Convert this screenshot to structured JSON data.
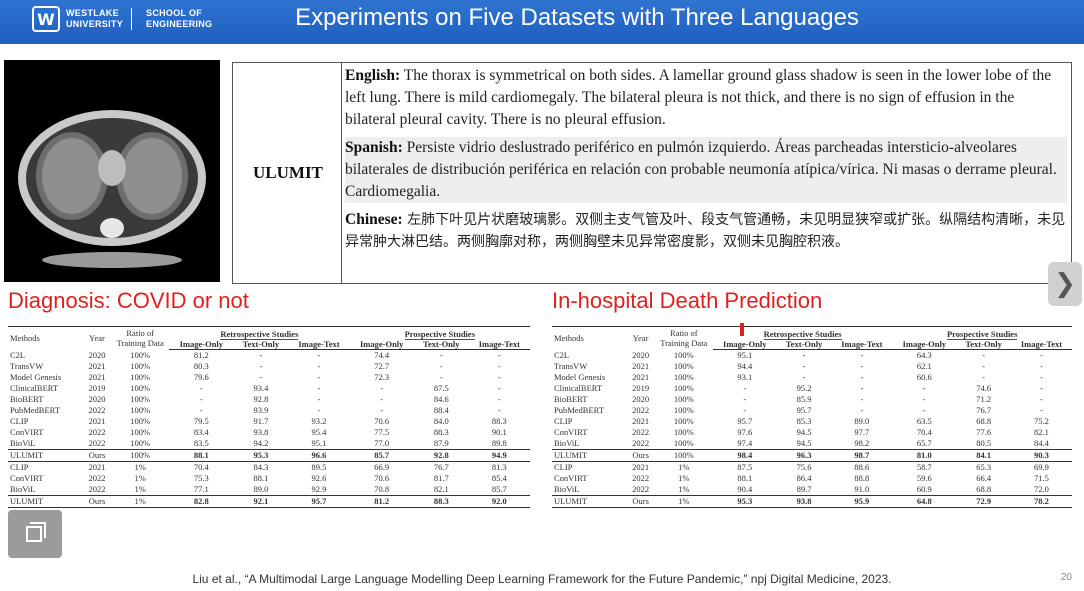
{
  "header": {
    "logo_mark": "W",
    "logo_line1": "WESTLAKE",
    "logo_line2": "UNIVERSITY",
    "logo_line3": "SCHOOL OF",
    "logo_line4": "ENGINEERING",
    "title": "Experiments on Five Datasets with Three Languages",
    "bg_color": "#2a6bcb"
  },
  "report": {
    "model": "ULUMIT",
    "english_label": "English:",
    "english_text": " The thorax is symmetrical on both sides. A lamellar ground glass shadow is seen in the lower lobe of the left lung. There is mild cardiomegaly. The bilateral pleura is not thick, and there is no sign of effusion in the bilateral pleural cavity. There is no pleural effusion.",
    "spanish_label": "Spanish:",
    "spanish_text": " Persiste vidrio deslustrado periférico en pulmón izquierdo. Áreas parcheadas intersticio-alveolares bilaterales de distribución periférica en relación con probable neumonía atípica/vírica. Ni masas o derrame pleural. Cardiomegalia.",
    "chinese_label": "Chinese:",
    "chinese_text": " 左肺下叶见片状磨玻璃影。双侧主支气管及叶、段支气管通畅，未见明显狭窄或扩张。纵隔结构清晰，未见异常肿大淋巴结。两侧胸廓对称，两侧胸壁未见异常密度影，双侧未见胸腔积液。"
  },
  "left_section_title": "Diagnosis: COVID or not",
  "right_section_title": "In-hospital Death Prediction",
  "table_headers": {
    "method": "Methods",
    "year": "Year",
    "ratio": "Ratio of Training Data",
    "retro": "Retrospective Studies",
    "pro": "Prospective Studies",
    "image_only": "Image-Only",
    "text_only": "Text-Only",
    "image_text": "Image-Text"
  },
  "left_table": {
    "rows": [
      [
        "C2L",
        "2020",
        "100%",
        "81.2",
        "-",
        "-",
        "74.4",
        "-",
        "-"
      ],
      [
        "TransVW",
        "2021",
        "100%",
        "80.3",
        "-",
        "-",
        "72.7",
        "-",
        "-"
      ],
      [
        "Model Genesis",
        "2021",
        "100%",
        "79.6",
        "-",
        "-",
        "72.3",
        "-",
        "-"
      ],
      [
        "ClinicalBERT",
        "2019",
        "100%",
        "-",
        "93.4",
        "-",
        "-",
        "87.5",
        "-"
      ],
      [
        "BioBERT",
        "2020",
        "100%",
        "-",
        "92.8",
        "-",
        "-",
        "84.6",
        "-"
      ],
      [
        "PubMedBERT",
        "2022",
        "100%",
        "-",
        "93.9",
        "-",
        "-",
        "88.4",
        "-"
      ],
      [
        "CLIP",
        "2021",
        "100%",
        "79.5",
        "91.7",
        "93.2",
        "70.6",
        "84.0",
        "88.3"
      ],
      [
        "ConVIRT",
        "2022",
        "100%",
        "83.4",
        "93.8",
        "95.4",
        "77.5",
        "88.3",
        "90.1"
      ],
      [
        "BioViL",
        "2022",
        "100%",
        "83.5",
        "94.2",
        "95.1",
        "77.0",
        "87.9",
        "89.8"
      ],
      [
        "ULUMIT",
        "Ours",
        "100%",
        "88.1",
        "95.3",
        "96.6",
        "85.7",
        "92.8",
        "94.9"
      ],
      [
        "CLIP",
        "2021",
        "1%",
        "70.4",
        "84.3",
        "89.5",
        "66.9",
        "76.7",
        "81.3"
      ],
      [
        "ConVIRT",
        "2022",
        "1%",
        "75.3",
        "88.1",
        "92.6",
        "70.6",
        "81.7",
        "85.4"
      ],
      [
        "BioViL",
        "2022",
        "1%",
        "77.1",
        "89.0",
        "92.9",
        "70.8",
        "82.1",
        "85.7"
      ],
      [
        "ULUMIT",
        "Ours",
        "1%",
        "82.8",
        "92.1",
        "95.7",
        "81.2",
        "88.3",
        "92.0"
      ]
    ]
  },
  "right_table": {
    "rows": [
      [
        "C2L",
        "2020",
        "100%",
        "95.1",
        "-",
        "-",
        "64.3",
        "-",
        "-"
      ],
      [
        "TransVW",
        "2021",
        "100%",
        "94.4",
        "-",
        "-",
        "62.1",
        "-",
        "-"
      ],
      [
        "Model Genesis",
        "2021",
        "100%",
        "93.1",
        "-",
        "-",
        "60.6",
        "-",
        "-"
      ],
      [
        "ClinicalBERT",
        "2019",
        "100%",
        "-",
        "95.2",
        "-",
        "-",
        "74.6",
        "-"
      ],
      [
        "BioBERT",
        "2020",
        "100%",
        "-",
        "85.9",
        "-",
        "-",
        "71.2",
        "-"
      ],
      [
        "PubMedBERT",
        "2022",
        "100%",
        "-",
        "95.7",
        "-",
        "-",
        "76.7",
        "-"
      ],
      [
        "CLIP",
        "2021",
        "100%",
        "95.7",
        "85.3",
        "89.0",
        "63.5",
        "68.8",
        "75.2"
      ],
      [
        "ConVIRT",
        "2022",
        "100%",
        "97.6",
        "94.5",
        "97.7",
        "70.4",
        "77.6",
        "82.1"
      ],
      [
        "BioViL",
        "2022",
        "100%",
        "97.4",
        "94.5",
        "98.2",
        "65.7",
        "80.5",
        "84.4"
      ],
      [
        "ULUMIT",
        "Ours",
        "100%",
        "98.4",
        "96.3",
        "98.7",
        "81.0",
        "84.1",
        "90.3"
      ],
      [
        "CLIP",
        "2021",
        "1%",
        "87.5",
        "75.6",
        "88.6",
        "58.7",
        "65.3",
        "69.9"
      ],
      [
        "ConVIRT",
        "2022",
        "1%",
        "88.1",
        "86.4",
        "88.8",
        "59.6",
        "66.4",
        "71.5"
      ],
      [
        "BioViL",
        "2022",
        "1%",
        "90.4",
        "89.7",
        "91.0",
        "60.9",
        "68.8",
        "72.0"
      ],
      [
        "ULUMIT",
        "Ours",
        "1%",
        "95.3",
        "93.8",
        "95.9",
        "64.8",
        "72.9",
        "78.2"
      ]
    ]
  },
  "citation": "Liu et al., “A Multimodal Large Language Modelling Deep Learning Framework for the Future Pandemic,” npj Digital Medicine, 2023.",
  "page_number": "20",
  "nav_next": "❯"
}
